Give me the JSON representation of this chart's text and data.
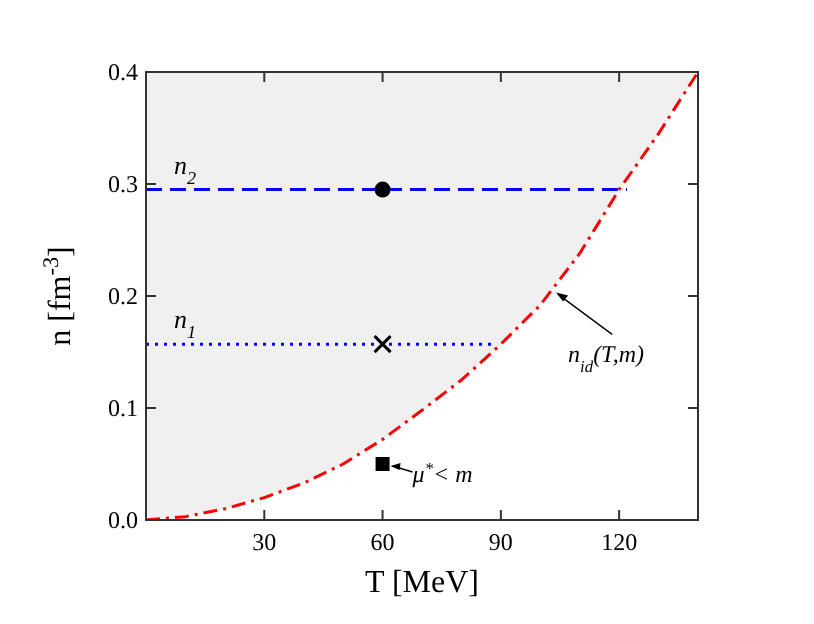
{
  "chart_data": {
    "type": "line",
    "xlabel": "T [MeV]",
    "ylabel": "n [fm$^{-3}$]",
    "xlim": [
      0,
      140
    ],
    "ylim": [
      0,
      0.4
    ],
    "xticks": [
      30,
      60,
      90,
      120
    ],
    "yticks": [
      {
        "value": 0,
        "label": "0.0"
      },
      {
        "value": 0.1,
        "label": "0.1"
      },
      {
        "value": 0.2,
        "label": "0.2"
      },
      {
        "value": 0.3,
        "label": "0.3"
      },
      {
        "value": 0.4,
        "label": "0.4"
      }
    ],
    "grid": false,
    "series": [
      {
        "color": "#ff0000",
        "line_style": "dashdot",
        "x": [
          0,
          10,
          20,
          30,
          40,
          50,
          60,
          70,
          80,
          90,
          100,
          110,
          120,
          130,
          140
        ],
        "values": [
          0,
          0.003,
          0.01,
          0.02,
          0.033,
          0.05,
          0.072,
          0.098,
          0.125,
          0.157,
          0.192,
          0.238,
          0.295,
          0.345,
          0.4
        ]
      },
      {
        "type": "line",
        "color": "#0000ff",
        "line_style": "dashed",
        "x": [
          0,
          122
        ],
        "values": [
          0.295,
          0.295
        ]
      },
      {
        "type": "line",
        "color": "#0000ff",
        "line_style": "dotted",
        "x": [
          0,
          89
        ],
        "values": [
          0.157,
          0.157
        ]
      },
      {
        "type": "scatter",
        "color": "#000000",
        "marker": "circle",
        "x": [
          60
        ],
        "values": [
          0.295
        ]
      },
      {
        "type": "scatter",
        "color": "#000000",
        "marker": "cross",
        "x": [
          60
        ],
        "values": [
          0.157
        ]
      },
      {
        "type": "scatter",
        "color": "#000000",
        "marker": "square",
        "x": [
          60
        ],
        "values": [
          0.05
        ]
      }
    ],
    "annotations": [
      "n$_{2}$",
      "n$_{1}$",
      {
        "text": "n$_{id}$(T,m)",
        "x": 103,
        "y": 0.205
      },
      {
        "text": "μ$^{*}$< m",
        "x": 60,
        "y": 0.05
      }
    ]
  }
}
